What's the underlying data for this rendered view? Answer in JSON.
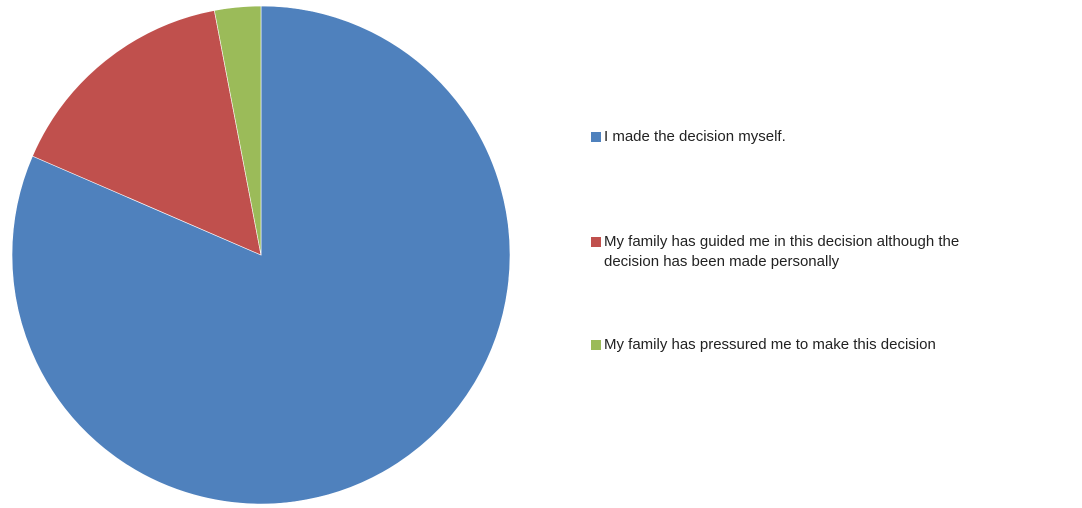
{
  "chart_data": {
    "type": "pie",
    "title": "",
    "start_angle_deg": 0,
    "direction": "clockwise",
    "legend_position": "right",
    "slices": [
      {
        "label": "I made the decision myself.",
        "value": 81.5,
        "color": "#4f81bd"
      },
      {
        "label": "My family has guided me in this decision although the\ndecision has been made personally",
        "value": 15.5,
        "color": "#c0504d"
      },
      {
        "label": "My family has pressured me to make this decision",
        "value": 3.0,
        "color": "#9bbb59"
      }
    ]
  }
}
